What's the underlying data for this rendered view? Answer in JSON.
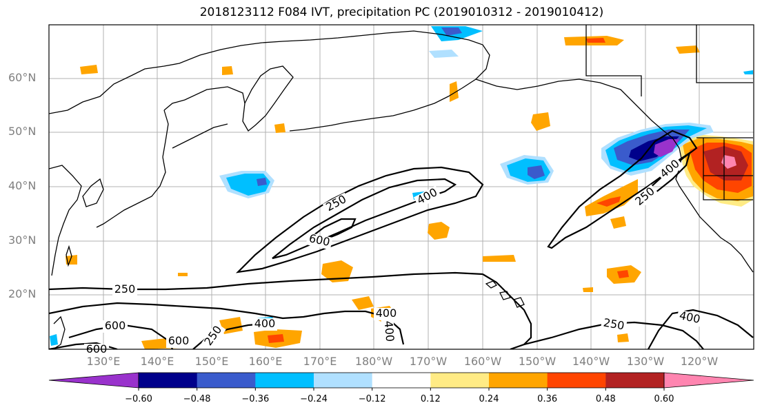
{
  "title": "2018123112 F084 IVT, precipitation PC (2019010312 - 2019010412)",
  "map": {
    "lat_labels": [
      "60°N",
      "50°N",
      "40°N",
      "30°N",
      "20°N"
    ],
    "lon_labels": [
      "130°E",
      "140°E",
      "150°E",
      "160°E",
      "170°E",
      "180°W",
      "170°W",
      "160°W",
      "150°W",
      "140°W",
      "130°W",
      "120°W"
    ],
    "ivt_contour_labels": [
      "250",
      "400",
      "600",
      "250",
      "400",
      "250",
      "600",
      "400",
      "250",
      "600",
      "600",
      "400",
      "400",
      "250",
      "400"
    ],
    "coastline_color": "#000000",
    "grid": true
  },
  "colorbar": {
    "colors": [
      "#9932cc",
      "#00008b",
      "#3a5bcc",
      "#00bfff",
      "#b0e0ff",
      "#ffffff",
      "#ffeb85",
      "#ffa500",
      "#ff4500",
      "#b22222",
      "#ff85b0"
    ],
    "ticks": [
      "−0.60",
      "−0.48",
      "−0.36",
      "−0.24",
      "−0.12",
      "0.12",
      "0.24",
      "0.36",
      "0.48",
      "0.60"
    ]
  }
}
